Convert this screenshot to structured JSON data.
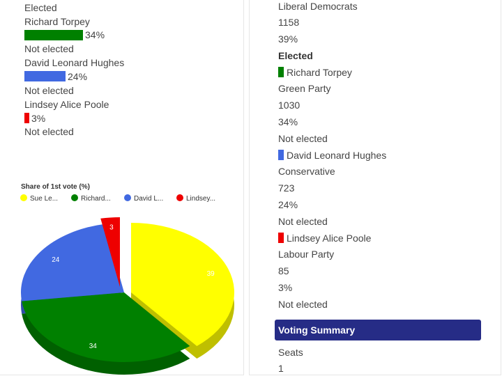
{
  "left": {
    "first_status": "Elected",
    "candidates": [
      {
        "name": "Richard Torpey",
        "percent_label": "34%",
        "percent": 34,
        "status": "Not elected",
        "color": "#008000"
      },
      {
        "name": "David Leonard Hughes",
        "percent_label": "24%",
        "percent": 24,
        "status": "Not elected",
        "color": "#4169e1"
      },
      {
        "name": "Lindsey Alice Poole",
        "percent_label": "3%",
        "percent": 3,
        "status": "Not elected",
        "color": "#ee0000"
      }
    ]
  },
  "chart_data": {
    "type": "pie",
    "title": "Share of 1st vote (%)",
    "legend_position": "top",
    "categories": [
      "Sue Le...",
      "Richard...",
      "David L...",
      "Lindsey..."
    ],
    "values": [
      39,
      34,
      24,
      3
    ],
    "data_labels": [
      "39",
      "34",
      "24",
      "3"
    ],
    "colors": [
      "#ffff00",
      "#008000",
      "#4169e1",
      "#ee0000"
    ],
    "style": "3d"
  },
  "right": {
    "first": {
      "party": "Liberal Democrats",
      "votes": "1158",
      "percent": "39%",
      "status": "Elected"
    },
    "candidates": [
      {
        "name": "Richard Torpey",
        "party": "Green Party",
        "votes": "1030",
        "percent": "34%",
        "status": "Not elected",
        "color": "#008000"
      },
      {
        "name": "David Leonard Hughes",
        "party": "Conservative",
        "votes": "723",
        "percent": "24%",
        "status": "Not elected",
        "color": "#4169e1"
      },
      {
        "name": "Lindsey Alice Poole",
        "party": "Labour Party",
        "votes": "85",
        "percent": "3%",
        "status": "Not elected",
        "color": "#ee0000"
      }
    ],
    "summary_header": "Voting Summary",
    "summary": {
      "seats_label": "Seats",
      "seats_value": "1"
    }
  }
}
